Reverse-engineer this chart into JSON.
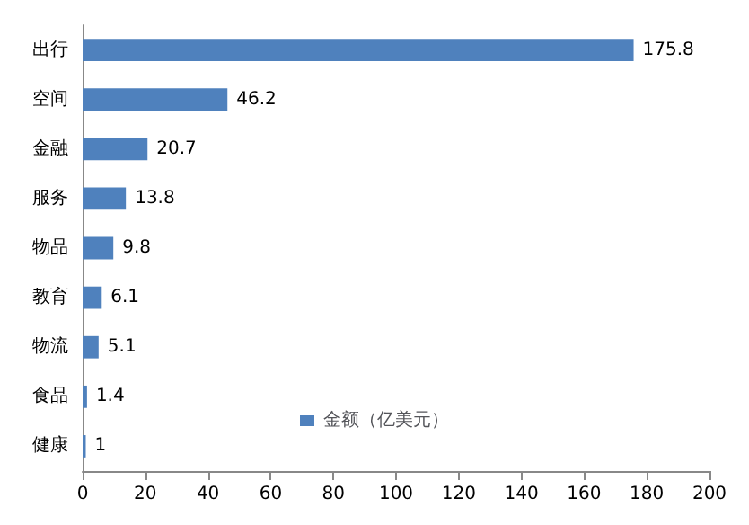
{
  "chart_data": {
    "type": "bar",
    "orientation": "horizontal",
    "categories": [
      "出行",
      "空间",
      "金融",
      "服务",
      "物品",
      "教育",
      "物流",
      "食品",
      "健康"
    ],
    "series": [
      {
        "name": "金额（亿美元）",
        "color": "#4f81bd",
        "values": [
          175.8,
          46.2,
          20.7,
          13.8,
          9.8,
          6.1,
          5.1,
          1.4,
          1
        ]
      }
    ],
    "xlim": [
      0,
      200
    ],
    "xticks": [
      0,
      20,
      40,
      60,
      80,
      100,
      120,
      140,
      160,
      180,
      200
    ],
    "data_labels": true,
    "grid": false,
    "legend": "bottom"
  }
}
